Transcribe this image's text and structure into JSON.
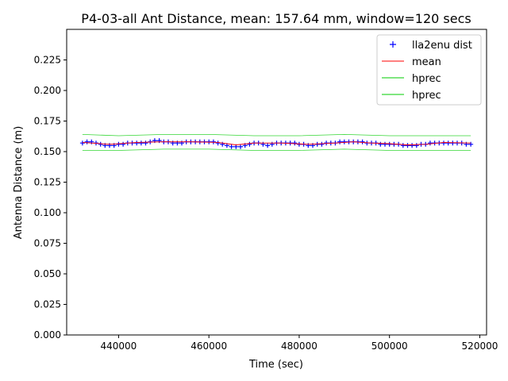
{
  "chart_data": {
    "type": "scatter",
    "title": "P4-03-all Ant Distance, mean: 157.64 mm, window=120 secs",
    "xlabel": "Time (sec)",
    "ylabel": "Antenna Distance (m)",
    "xlim": [
      428500,
      521500
    ],
    "ylim": [
      0.0,
      0.25
    ],
    "xticks": [
      440000,
      460000,
      480000,
      500000,
      520000
    ],
    "xtick_labels": [
      "440000",
      "460000",
      "480000",
      "500000",
      "520000"
    ],
    "yticks": [
      0.0,
      0.025,
      0.05,
      0.075,
      0.1,
      0.125,
      0.15,
      0.175,
      0.2,
      0.225
    ],
    "ytick_labels": [
      "0.000",
      "0.025",
      "0.050",
      "0.075",
      "0.100",
      "0.125",
      "0.150",
      "0.175",
      "0.200",
      "0.225"
    ],
    "grid": false,
    "legend_position": "top-right",
    "colors": {
      "points": "#0000ff",
      "mean": "#ff0000",
      "hprec": "#00cc00"
    },
    "series": [
      {
        "name": "lla2enu dist",
        "kind": "scatter",
        "marker": "+",
        "x": [
          432000,
          433000,
          434000,
          435000,
          436000,
          437000,
          438000,
          439000,
          440000,
          441000,
          442000,
          443000,
          444000,
          445000,
          446000,
          447000,
          448000,
          449000,
          450000,
          451000,
          452000,
          453000,
          454000,
          455000,
          456000,
          457000,
          458000,
          459000,
          460000,
          461000,
          462000,
          463000,
          464000,
          465000,
          466000,
          467000,
          468000,
          469000,
          470000,
          471000,
          472000,
          473000,
          474000,
          475000,
          476000,
          477000,
          478000,
          479000,
          480000,
          481000,
          482000,
          483000,
          484000,
          485000,
          486000,
          487000,
          488000,
          489000,
          490000,
          491000,
          492000,
          493000,
          494000,
          495000,
          496000,
          497000,
          498000,
          499000,
          500000,
          501000,
          502000,
          503000,
          504000,
          505000,
          506000,
          507000,
          508000,
          509000,
          510000,
          511000,
          512000,
          513000,
          514000,
          515000,
          516000,
          517000,
          518000
        ],
        "y": [
          0.157,
          0.158,
          0.158,
          0.157,
          0.156,
          0.155,
          0.155,
          0.155,
          0.156,
          0.156,
          0.157,
          0.157,
          0.157,
          0.157,
          0.157,
          0.158,
          0.159,
          0.159,
          0.158,
          0.158,
          0.157,
          0.157,
          0.157,
          0.158,
          0.158,
          0.158,
          0.158,
          0.158,
          0.158,
          0.158,
          0.157,
          0.156,
          0.155,
          0.154,
          0.154,
          0.154,
          0.155,
          0.156,
          0.157,
          0.157,
          0.156,
          0.155,
          0.156,
          0.157,
          0.157,
          0.157,
          0.157,
          0.157,
          0.156,
          0.156,
          0.155,
          0.155,
          0.156,
          0.156,
          0.157,
          0.157,
          0.157,
          0.158,
          0.158,
          0.158,
          0.158,
          0.158,
          0.158,
          0.157,
          0.157,
          0.157,
          0.156,
          0.156,
          0.156,
          0.156,
          0.156,
          0.155,
          0.155,
          0.155,
          0.155,
          0.156,
          0.156,
          0.157,
          0.157,
          0.157,
          0.157,
          0.157,
          0.157,
          0.157,
          0.157,
          0.156,
          0.156
        ]
      },
      {
        "name": "mean",
        "kind": "line",
        "x": [
          432000,
          438000,
          444000,
          450000,
          456000,
          462000,
          466000,
          470000,
          476000,
          482000,
          488000,
          492000,
          496000,
          500000,
          504000,
          508000,
          512000,
          518000
        ],
        "y": [
          0.1575,
          0.156,
          0.1575,
          0.158,
          0.158,
          0.1575,
          0.1555,
          0.157,
          0.157,
          0.156,
          0.157,
          0.158,
          0.157,
          0.1565,
          0.1555,
          0.156,
          0.1575,
          0.157
        ]
      },
      {
        "name": "hprec",
        "kind": "line",
        "x": [
          432000,
          440000,
          450000,
          460000,
          470000,
          480000,
          490000,
          500000,
          510000,
          518000
        ],
        "y": [
          0.164,
          0.163,
          0.164,
          0.164,
          0.163,
          0.163,
          0.164,
          0.163,
          0.163,
          0.163
        ]
      },
      {
        "name": "hprec",
        "kind": "line",
        "x": [
          432000,
          440000,
          450000,
          460000,
          470000,
          480000,
          490000,
          500000,
          510000,
          518000
        ],
        "y": [
          0.151,
          0.151,
          0.152,
          0.152,
          0.151,
          0.151,
          0.152,
          0.151,
          0.151,
          0.151
        ]
      }
    ]
  }
}
